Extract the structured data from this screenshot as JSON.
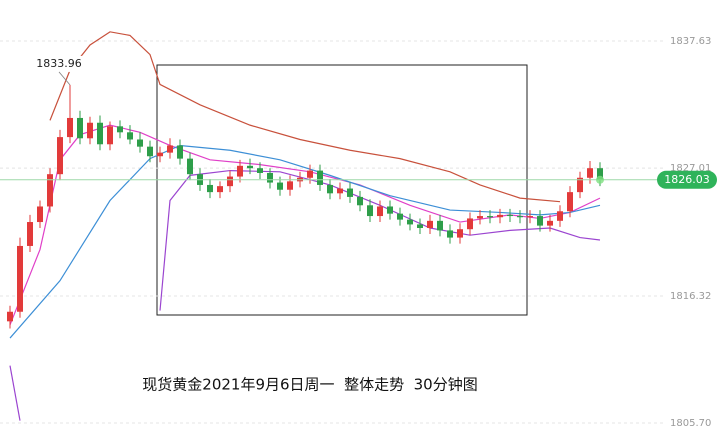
{
  "chart_data": {
    "type": "candlestick",
    "caption": "现货黄金2021年9月6日周一  整体走势  30分钟图",
    "open": [
      1814.2,
      1815.0,
      1820.5,
      1822.5,
      1823.8,
      1826.5,
      1829.6,
      1831.2,
      1829.5,
      1830.8,
      1829.0,
      1830.5,
      1830.0,
      1829.4,
      1828.8,
      1828.0,
      1828.3,
      1828.9,
      1827.8,
      1826.5,
      1825.6,
      1825.0,
      1825.5,
      1826.3,
      1827.2,
      1827.0,
      1826.6,
      1825.8,
      1825.2,
      1825.9,
      1826.2,
      1826.8,
      1825.6,
      1824.9,
      1825.3,
      1824.6,
      1823.9,
      1823.0,
      1823.8,
      1823.2,
      1822.7,
      1822.3,
      1822.0,
      1822.6,
      1821.8,
      1821.2,
      1821.9,
      1822.8,
      1823.0,
      1822.9,
      1823.1,
      1823.0,
      1822.9,
      1823.0,
      1822.2,
      1822.6,
      1823.4,
      1825.0,
      1826.2,
      1827.0
    ],
    "high": [
      1815.5,
      1821.2,
      1823.1,
      1824.3,
      1827.0,
      1830.2,
      1833.96,
      1831.8,
      1831.3,
      1831.4,
      1830.9,
      1831.0,
      1830.6,
      1830.0,
      1829.3,
      1828.8,
      1829.5,
      1829.4,
      1828.3,
      1827.0,
      1826.1,
      1825.9,
      1826.8,
      1827.7,
      1827.8,
      1827.5,
      1827.0,
      1826.3,
      1826.4,
      1826.7,
      1827.3,
      1827.3,
      1826.1,
      1825.8,
      1825.8,
      1825.1,
      1824.4,
      1824.3,
      1824.3,
      1823.7,
      1823.2,
      1822.8,
      1823.1,
      1823.1,
      1822.3,
      1822.4,
      1823.3,
      1823.5,
      1823.5,
      1823.6,
      1823.6,
      1823.5,
      1823.5,
      1823.5,
      1823.1,
      1823.9,
      1825.5,
      1826.7,
      1827.6,
      1827.5
    ],
    "low": [
      1813.6,
      1814.5,
      1820.0,
      1822.0,
      1823.3,
      1826.0,
      1829.1,
      1829.0,
      1829.0,
      1828.5,
      1828.5,
      1829.5,
      1829.0,
      1828.3,
      1827.5,
      1827.5,
      1827.8,
      1827.3,
      1826.0,
      1825.1,
      1824.5,
      1824.5,
      1825.0,
      1825.8,
      1826.5,
      1826.1,
      1825.3,
      1824.7,
      1824.7,
      1825.4,
      1825.7,
      1825.1,
      1824.4,
      1824.4,
      1824.1,
      1823.4,
      1822.5,
      1822.5,
      1822.7,
      1822.2,
      1821.8,
      1821.5,
      1821.5,
      1821.3,
      1820.7,
      1820.7,
      1821.4,
      1822.3,
      1822.4,
      1822.4,
      1822.5,
      1822.4,
      1822.4,
      1821.7,
      1821.7,
      1822.1,
      1822.9,
      1824.5,
      1825.7,
      1825.5
    ],
    "close": [
      1815.0,
      1820.5,
      1822.5,
      1823.8,
      1826.5,
      1829.6,
      1831.2,
      1829.5,
      1830.8,
      1829.0,
      1830.5,
      1830.0,
      1829.4,
      1828.8,
      1828.0,
      1828.3,
      1828.9,
      1827.8,
      1826.5,
      1825.6,
      1825.0,
      1825.5,
      1826.3,
      1827.2,
      1827.0,
      1826.6,
      1825.8,
      1825.2,
      1825.9,
      1826.2,
      1826.8,
      1825.6,
      1824.9,
      1825.3,
      1824.6,
      1823.9,
      1823.0,
      1823.8,
      1823.2,
      1822.7,
      1822.3,
      1822.0,
      1822.6,
      1821.8,
      1821.2,
      1821.9,
      1822.8,
      1823.0,
      1822.9,
      1823.1,
      1823.0,
      1822.9,
      1823.0,
      1822.2,
      1822.6,
      1823.4,
      1825.0,
      1826.2,
      1827.0,
      1826.03
    ],
    "up_color": "#e23a3a",
    "down_color": "#2e9e4a",
    "lines": [
      {
        "color": "#c8513c",
        "x": [
          4,
          6,
          8,
          10,
          12,
          14,
          15,
          19,
          24,
          29,
          34,
          39,
          44,
          47,
          51,
          55
        ],
        "values": [
          1831.0,
          1835.2,
          1837.3,
          1838.4,
          1838.1,
          1836.5,
          1834.0,
          1832.3,
          1830.6,
          1829.4,
          1828.5,
          1827.8,
          1826.7,
          1825.6,
          1824.5,
          1824.2
        ]
      },
      {
        "color": "#e040c8",
        "x": [
          0,
          3,
          5,
          7,
          10,
          13,
          16,
          20,
          25,
          30,
          35,
          40,
          45,
          50,
          53,
          56,
          59
        ],
        "values": [
          1813.9,
          1820.2,
          1827.7,
          1829.8,
          1830.6,
          1830.0,
          1828.9,
          1827.7,
          1827.3,
          1826.7,
          1825.6,
          1823.9,
          1822.5,
          1823.1,
          1822.8,
          1823.3,
          1824.5
        ]
      },
      {
        "color": "#3d8fd6",
        "x": [
          0,
          5,
          10,
          14,
          17,
          22,
          27,
          32,
          38,
          44,
          49,
          53,
          56,
          59
        ],
        "values": [
          1812.8,
          1817.6,
          1824.3,
          1827.8,
          1828.9,
          1828.5,
          1827.7,
          1826.4,
          1824.7,
          1823.5,
          1823.3,
          1823.1,
          1823.3,
          1823.9
        ]
      },
      {
        "color": "#9b45d0",
        "x": [
          15,
          16,
          18,
          22,
          27,
          32,
          37,
          42,
          46,
          50,
          54,
          57,
          59
        ],
        "values": [
          1815.1,
          1824.3,
          1826.4,
          1826.8,
          1826.7,
          1825.6,
          1823.9,
          1822.0,
          1821.4,
          1821.8,
          1822.0,
          1821.2,
          1821.0
        ]
      },
      {
        "color": "#9b45d0",
        "x": [
          0,
          1
        ],
        "values": [
          1810.5,
          1805.9
        ]
      }
    ],
    "ylim": [
      1805.45,
      1841.06
    ],
    "yticks": [
      1837.63,
      1827.01,
      1816.32,
      {
        "value": 1805.7,
        "label": "1805.70"
      }
    ]
  }
}
